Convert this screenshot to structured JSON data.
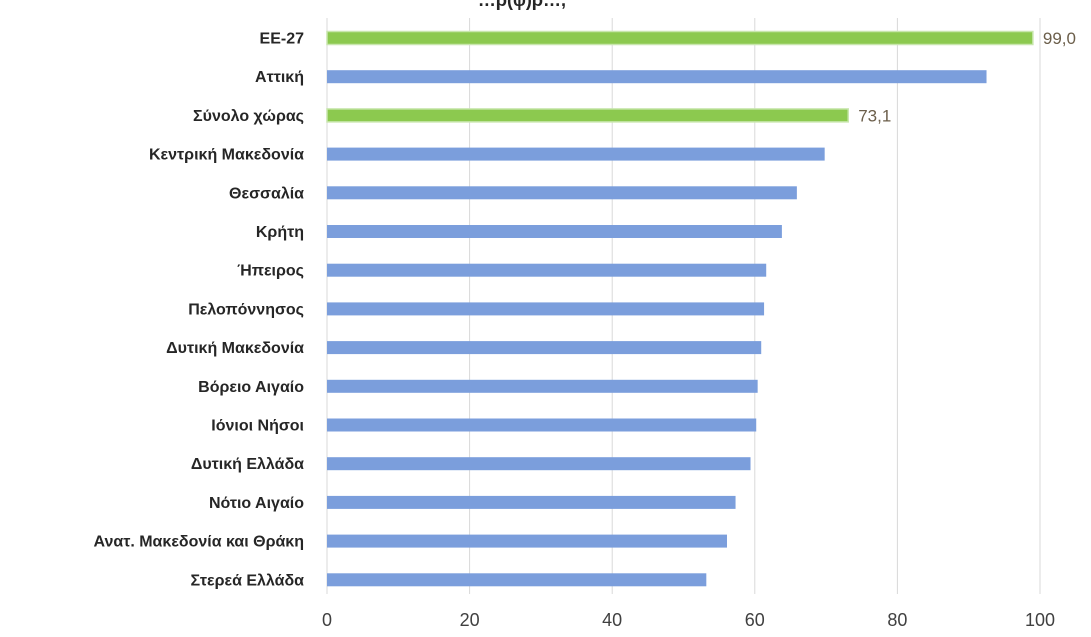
{
  "chart_data": {
    "type": "bar",
    "orientation": "horizontal",
    "title_partial": "…ρ(φ)ρ…,",
    "categories": [
      "ΕΕ-27",
      "Αττική",
      "Σύνολο χώρας",
      "Κεντρική Μακεδονία",
      "Θεσσαλία",
      "Κρήτη",
      "Ήπειρος",
      "Πελοπόννησος",
      "Δυτική Μακεδονία",
      "Βόρειο Αιγαίο",
      "Ιόνιοι Νήσοι",
      "Δυτική Ελλάδα",
      "Νότιο Αιγαίο",
      "Ανατ. Μακεδονία και Θράκη",
      "Στερεά Ελλάδα"
    ],
    "values": [
      99.0,
      92.5,
      73.1,
      69.8,
      65.9,
      63.8,
      61.6,
      61.3,
      60.9,
      60.4,
      60.2,
      59.4,
      57.3,
      56.1,
      53.2
    ],
    "highlight": [
      true,
      false,
      true,
      false,
      false,
      false,
      false,
      false,
      false,
      false,
      false,
      false,
      false,
      false,
      false
    ],
    "data_labels": {
      "0": "99,0",
      "2": "73,1"
    },
    "xlim": [
      0,
      100
    ],
    "xticks": [
      0,
      20,
      40,
      60,
      80,
      100
    ],
    "xtick_labels": [
      "0",
      "20",
      "40",
      "60",
      "80",
      "100"
    ],
    "grid": "vertical",
    "colors": {
      "bar": "#7b9edc",
      "highlight": "#8cc94f",
      "highlight_edge": "#c8e6ad",
      "grid": "#d9d9d9",
      "label": "#6b5e4a"
    }
  }
}
